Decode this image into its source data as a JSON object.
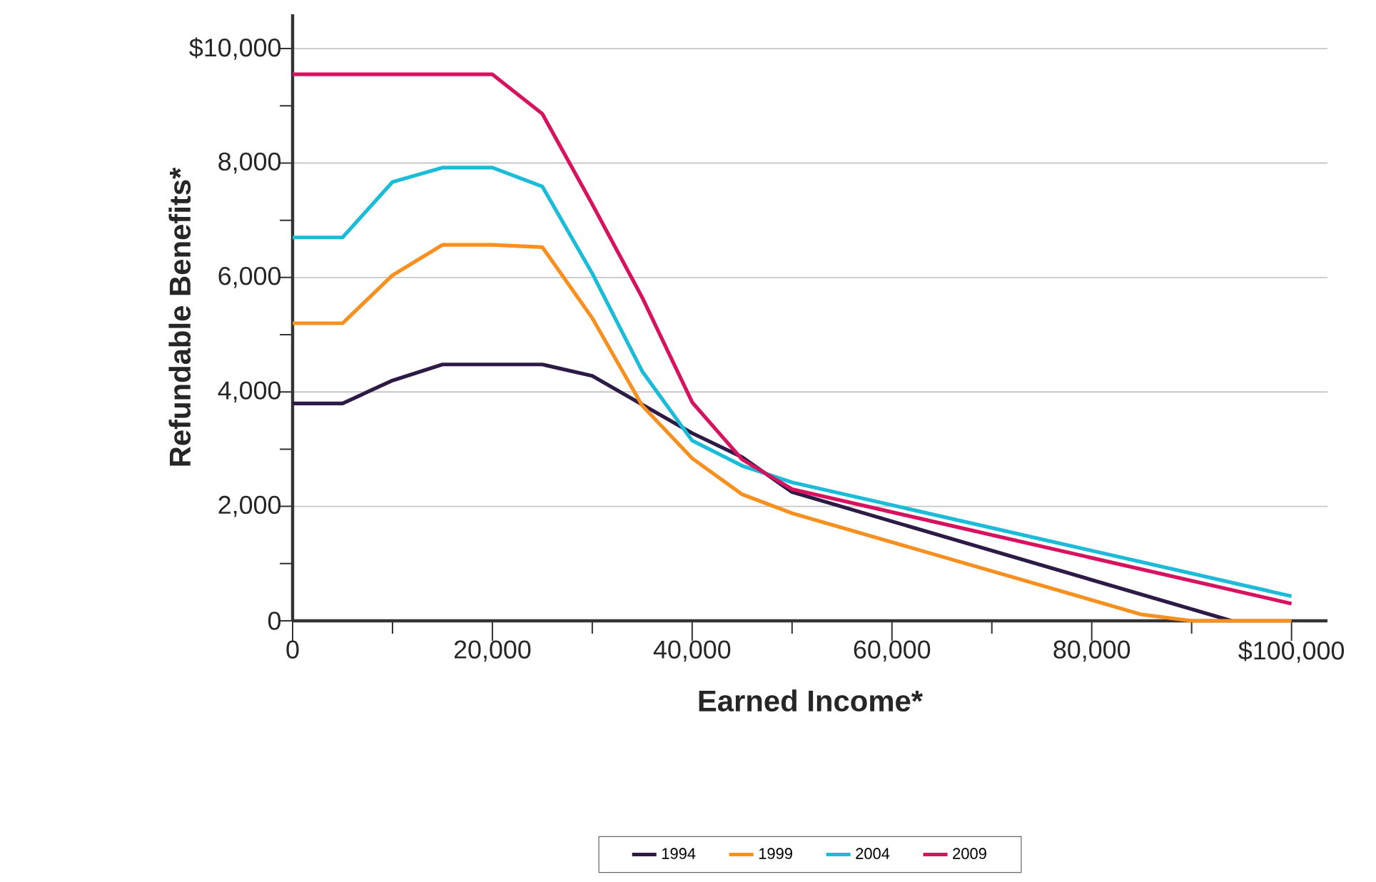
{
  "chart_data": {
    "type": "line",
    "xlabel": "Earned Income*",
    "ylabel": "Refundable Benefits*",
    "xlim": [
      0,
      103600
    ],
    "ylim": [
      0,
      10600
    ],
    "xticks": [
      0,
      {
        "value": 10000,
        "label": null
      },
      {
        "value": 20000,
        "label": "20,000"
      },
      {
        "value": 30000,
        "label": null
      },
      {
        "value": 40000,
        "label": "40,000"
      },
      {
        "value": 50000,
        "label": null
      },
      {
        "value": 60000,
        "label": "60,000"
      },
      {
        "value": 70000,
        "label": null
      },
      {
        "value": 80000,
        "label": "80,000"
      },
      {
        "value": 90000,
        "label": null
      },
      {
        "value": 100000,
        "label": "$100,000"
      }
    ],
    "yticks": [
      0,
      {
        "value": 1000,
        "label": null
      },
      {
        "value": 2000,
        "label": "2,000"
      },
      {
        "value": 3000,
        "label": null
      },
      {
        "value": 4000,
        "label": "4,000"
      },
      {
        "value": 5000,
        "label": null
      },
      {
        "value": 6000,
        "label": "6,000"
      },
      {
        "value": 7000,
        "label": null
      },
      {
        "value": 8000,
        "label": "8,000"
      },
      {
        "value": 9000,
        "label": null
      },
      {
        "value": 10000,
        "label": "$10,000"
      }
    ],
    "grid": "y",
    "legend": "bottom",
    "marker": "none",
    "line_style": "solid",
    "series": [
      {
        "name": "1994",
        "color": "#2d1b45",
        "x": [
          0,
          5000,
          10000,
          15000,
          20000,
          25000,
          30000,
          35000,
          40000,
          45000,
          50000,
          94000
        ],
        "values": [
          3800,
          3800,
          4200,
          4480,
          4480,
          4480,
          4280,
          3780,
          3280,
          2860,
          2250,
          0
        ]
      },
      {
        "name": "1999",
        "color": "#f7901e",
        "x": [
          0,
          5000,
          10000,
          15000,
          20000,
          25000,
          30000,
          35000,
          40000,
          45000,
          50000,
          85000,
          90000,
          100000
        ],
        "values": [
          5200,
          5200,
          6040,
          6570,
          6570,
          6530,
          5290,
          3760,
          2840,
          2210,
          1880,
          110,
          0,
          0
        ]
      },
      {
        "name": "2004",
        "color": "#1bbcd8",
        "x": [
          0,
          5000,
          10000,
          15000,
          20000,
          25000,
          30000,
          35000,
          40000,
          45000,
          50000,
          100000
        ],
        "values": [
          6700,
          6700,
          7670,
          7920,
          7920,
          7590,
          6070,
          4360,
          3150,
          2710,
          2420,
          430
        ]
      },
      {
        "name": "2009",
        "color": "#d7135f",
        "x": [
          0,
          5000,
          10000,
          15000,
          20000,
          25000,
          30000,
          35000,
          40000,
          45000,
          50000,
          100000
        ],
        "values": [
          9550,
          9550,
          9550,
          9550,
          9550,
          8860,
          7280,
          5650,
          3820,
          2820,
          2300,
          300
        ]
      }
    ]
  }
}
